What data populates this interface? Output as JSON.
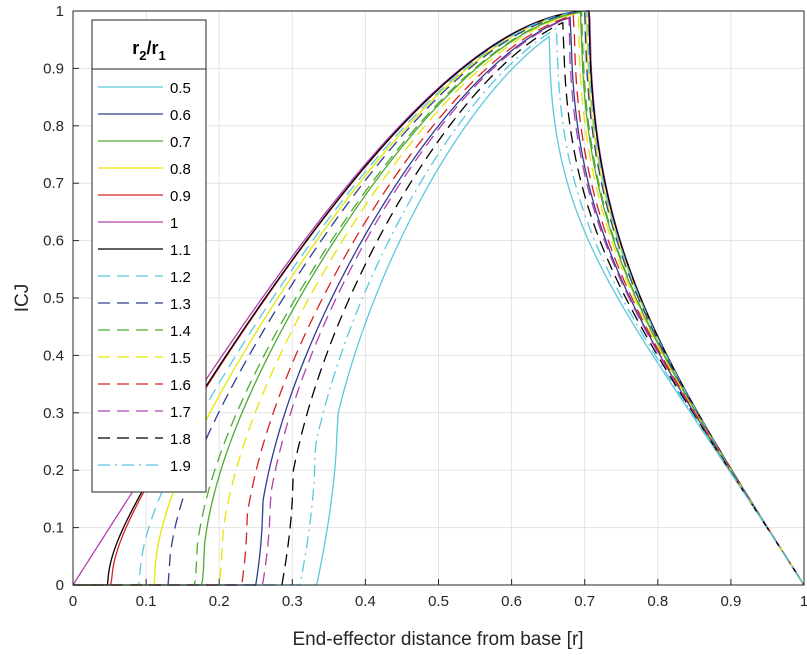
{
  "chart_data": {
    "type": "line",
    "xlabel": "End-effector distance from base [r]",
    "ylabel": "ICJ",
    "xlim": [
      0,
      1
    ],
    "ylim": [
      0,
      1
    ],
    "xticks": [
      "0",
      "0.1",
      "0.2",
      "0.3",
      "0.4",
      "0.5",
      "0.6",
      "0.7",
      "0.8",
      "0.9",
      "1"
    ],
    "yticks": [
      "0",
      "0.1",
      "0.2",
      "0.3",
      "0.4",
      "0.5",
      "0.6",
      "0.7",
      "0.8",
      "0.9",
      "1"
    ],
    "grid": true,
    "legend": {
      "placement": "top-left",
      "title_main": "r",
      "title_sub1": "2",
      "title_sep": "/r",
      "title_sub2": "1"
    },
    "series": [
      {
        "name": "0.5",
        "k": 0.5,
        "color": "#5BC8E0",
        "dash": "solid"
      },
      {
        "name": "0.6",
        "k": 0.6,
        "color": "#2E3D8F",
        "dash": "solid"
      },
      {
        "name": "0.7",
        "k": 0.7,
        "color": "#4DAA32",
        "dash": "solid"
      },
      {
        "name": "0.8",
        "k": 0.8,
        "color": "#E6E600",
        "dash": "solid"
      },
      {
        "name": "0.9",
        "k": 0.9,
        "color": "#D92020",
        "dash": "solid"
      },
      {
        "name": "1",
        "k": 1.0,
        "color": "#B040B0",
        "dash": "solid"
      },
      {
        "name": "1.1",
        "k": 1.1,
        "color": "#000000",
        "dash": "solid"
      },
      {
        "name": "1.2",
        "k": 1.2,
        "color": "#5BC8E0",
        "dash": "dashed"
      },
      {
        "name": "1.3",
        "k": 1.3,
        "color": "#2E3D8F",
        "dash": "dashed"
      },
      {
        "name": "1.4",
        "k": 1.4,
        "color": "#4DAA32",
        "dash": "dashed"
      },
      {
        "name": "1.5",
        "k": 1.5,
        "color": "#E6E600",
        "dash": "dashed"
      },
      {
        "name": "1.6",
        "k": 1.6,
        "color": "#D92020",
        "dash": "dashed"
      },
      {
        "name": "1.7",
        "k": 1.7,
        "color": "#B040B0",
        "dash": "dashed"
      },
      {
        "name": "1.8",
        "k": 1.8,
        "color": "#000000",
        "dash": "dashed"
      },
      {
        "name": "1.9",
        "k": 1.9,
        "color": "#5BC8E0",
        "dash": "dashdot"
      }
    ]
  }
}
